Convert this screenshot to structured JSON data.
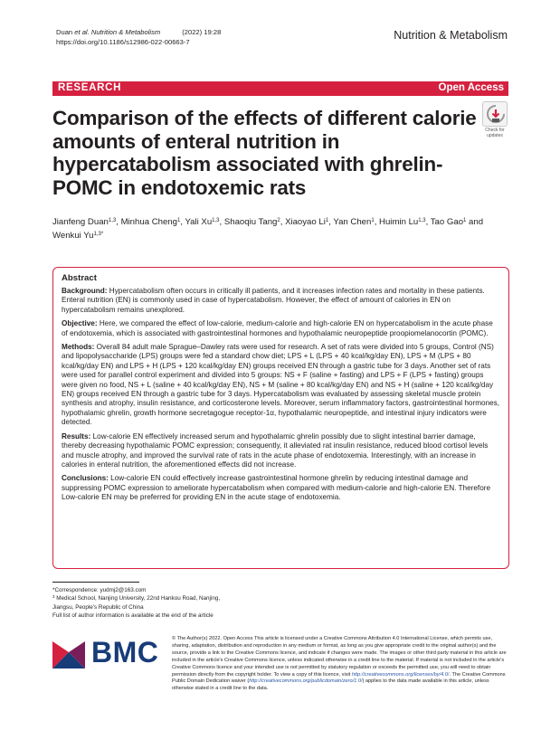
{
  "header": {
    "meta_authors": "Duan ",
    "meta_journal": "et al. Nutrition & Metabolism",
    "meta_citation": "(2022) 19:28",
    "doi": "https://doi.org/10.1186/s12986-022-00663-7",
    "journal_name": "Nutrition & Metabolism"
  },
  "banner": {
    "section_label": "RESEARCH",
    "access_label": "Open Access",
    "color": "#d5203f"
  },
  "badge": {
    "icon": "check-for-updates-icon",
    "label_line1": "Check for",
    "label_line2": "updates"
  },
  "article": {
    "title": "Comparison of the effects of different calorie amounts of enteral nutrition in hypercatabolism associated with ghrelin-POMC in endotoxemic rats",
    "authors": [
      {
        "name": "Jianfeng Duan",
        "aff": "1,3"
      },
      {
        "name": "Minhua Cheng",
        "aff": "1"
      },
      {
        "name": "Yali Xu",
        "aff": "1,3"
      },
      {
        "name": "Shaoqiu Tang",
        "aff": "2"
      },
      {
        "name": "Xiaoyao Li",
        "aff": "1"
      },
      {
        "name": "Yan Chen",
        "aff": "1"
      },
      {
        "name": "Huimin Lu",
        "aff": "1,3"
      },
      {
        "name": "Tao Gao",
        "aff": "1"
      },
      {
        "name": "Wenkui Yu",
        "aff": "1,3*"
      }
    ],
    "authors_conjunction": "and"
  },
  "abstract": {
    "heading": "Abstract",
    "background_label": "Background:",
    "background_text": "Hypercatabolism often occurs in critically ill patients, and it increases infection rates and mortality in these patients. Enteral nutrition (EN) is commonly used in case of hypercatabolism. However, the effect of amount of calories in EN on hypercatabolism remains unexplored.",
    "objective_label": "Objective:",
    "objective_text": "Here, we compared the effect of low-calorie, medium-calorie and high-calorie EN on hypercatabolism in the acute phase of endotoxemia, which is associated with gastrointestinal hormones and hypothalamic neuropeptide proopiomelanocortin (POMC).",
    "methods_label": "Methods:",
    "methods_text": "Overall 84 adult male Sprague–Dawley rats were used for research. A set of rats were divided into 5 groups, Control (NS) and lipopolysaccharide (LPS) groups were fed a standard chow diet; LPS + L (LPS + 40 kcal/kg/day EN), LPS + M (LPS + 80 kcal/kg/day EN) and LPS + H (LPS + 120 kcal/kg/day EN) groups received EN through a gastric tube for 3 days. Another set of rats were used for parallel control experiment and divided into 5 groups: NS + F (saline + fasting) and LPS + F (LPS + fasting) groups were given no food, NS + L (saline + 40 kcal/kg/day EN), NS + M (saline + 80 kcal/kg/day EN) and NS + H (saline + 120 kcal/kg/day EN) groups received EN through a gastric tube for 3 days. Hypercatabolism was evaluated by assessing skeletal muscle protein synthesis and atrophy, insulin resistance, and corticosterone levels. Moreover, serum inflammatory factors, gastrointestinal hormones, hypothalamic ghrelin, growth hormone secretagogue receptor-1α, hypothalamic neuropeptide, and intestinal injury indicators were detected.",
    "results_label": "Results:",
    "results_text": "Low-calorie EN effectively increased serum and hypothalamic ghrelin possibly due to slight intestinal barrier damage, thereby decreasing hypothalamic POMC expression; consequently, it alleviated rat insulin resistance, reduced blood cortisol levels and muscle atrophy, and improved the survival rate of rats in the acute phase of endotoxemia. Interestingly, with an increase in calories in enteral nutrition, the aforementioned effects did not increase.",
    "conclusions_label": "Conclusions:",
    "conclusions_text": "Low-calorie EN could effectively increase gastrointestinal hormone ghrelin by reducing intestinal damage and suppressing POMC expression to ameliorate hypercatabolism when compared with medium-calorie and high-calorie EN. Therefore Low-calorie EN may be preferred for providing EN in the acute stage of endotoxemia."
  },
  "footnotes": {
    "correspondence": "*Correspondence: yudmj2@163.com",
    "affiliation_sup": "3",
    "affiliation_line1": "Medical School, Nanjing University, 22nd Hankou Road, Nanjing,",
    "affiliation_line2": "Jiangsu, People's Republic of China",
    "full_list": "Full list of author information is available at the end of the article"
  },
  "publisher": {
    "logo_text": "BMC",
    "logo_color": "#173c78",
    "license_text_1": "© The Author(s) 2022. Open Access This article is licensed under a Creative Commons Attribution 4.0 International License, which permits use, sharing, adaptation, distribution and reproduction in any medium or format, as long as you give appropriate credit to the original author(s) and the source, provide a link to the Creative Commons licence, and indicate if changes were made. The images or other third party material in this article are included in the article's Creative Commons licence, unless indicated otherwise in a credit line to the material. If material is not included in the article's Creative Commons licence and your intended use is not permitted by statutory regulation or exceeds the permitted use, you will need to obtain permission directly from the copyright holder. To view a copy of this licence, visit ",
    "license_link_1": "http://creativecommons.org/licenses/by/4.0/",
    "license_text_2": ". The Creative Commons Public Domain Dedication waiver (",
    "license_link_2": "http://creativecommons.org/publicdomain/zero/1.0/",
    "license_text_3": ") applies to the data made available in this article, unless otherwise stated in a credit line to the data."
  }
}
